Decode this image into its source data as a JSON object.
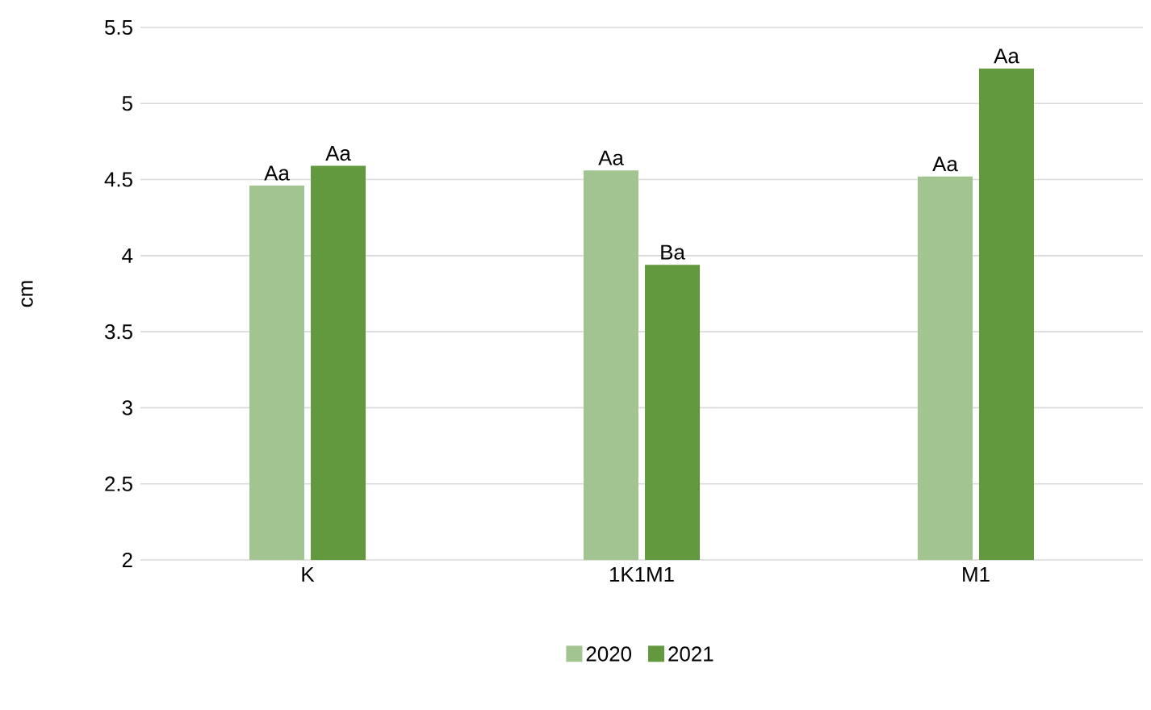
{
  "chart_data": {
    "type": "bar",
    "ylabel": "cm",
    "categories": [
      "K",
      "1K1M1",
      "M1"
    ],
    "series": [
      {
        "name": "2020",
        "color": "#a1c490",
        "values": [
          4.46,
          4.56,
          4.52
        ],
        "value_labels": [
          "Aa",
          "Aa",
          "Aa"
        ]
      },
      {
        "name": "2021",
        "color": "#62993e",
        "values": [
          4.59,
          3.94,
          5.23
        ],
        "value_labels": [
          "Aa",
          "Ba",
          "Aa"
        ]
      }
    ],
    "ylim": [
      2,
      5.5
    ],
    "yticks": [
      2,
      2.5,
      3,
      3.5,
      4,
      4.5,
      5,
      5.5
    ],
    "grid": "y",
    "legend": "bottom"
  }
}
